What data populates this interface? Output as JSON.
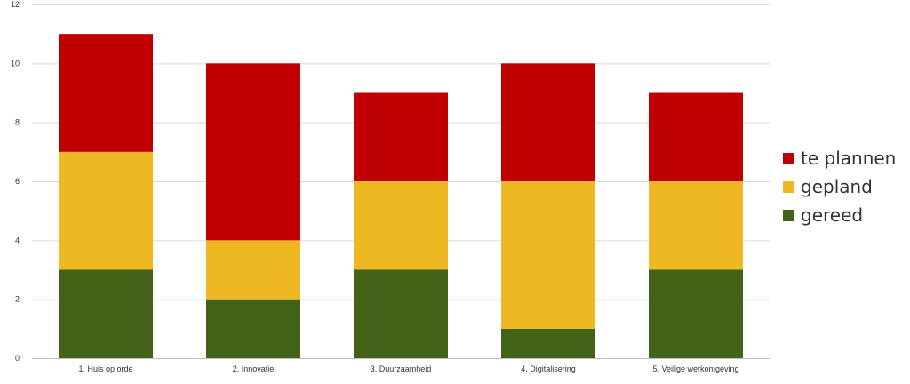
{
  "chart_data": {
    "type": "bar",
    "stacked": true,
    "categories": [
      "1. Huis op orde",
      "2. Innovatie",
      "3. Duurzaamheid",
      "4. Digitalisering",
      "5. Veilige werkomgeving"
    ],
    "series": [
      {
        "name": "gereed",
        "color": "#426218",
        "values": [
          3,
          2,
          3,
          1,
          3
        ]
      },
      {
        "name": "gepland",
        "color": "#eeb822",
        "values": [
          4,
          2,
          3,
          5,
          3
        ]
      },
      {
        "name": "te plannen",
        "color": "#c00000",
        "values": [
          4,
          6,
          3,
          4,
          3
        ]
      }
    ],
    "ylim": [
      0,
      12
    ],
    "yticks": [
      0,
      2,
      4,
      6,
      8,
      10,
      12
    ],
    "grid": true,
    "legend": {
      "position": "right",
      "order": [
        "te plannen",
        "gepland",
        "gereed"
      ]
    }
  }
}
